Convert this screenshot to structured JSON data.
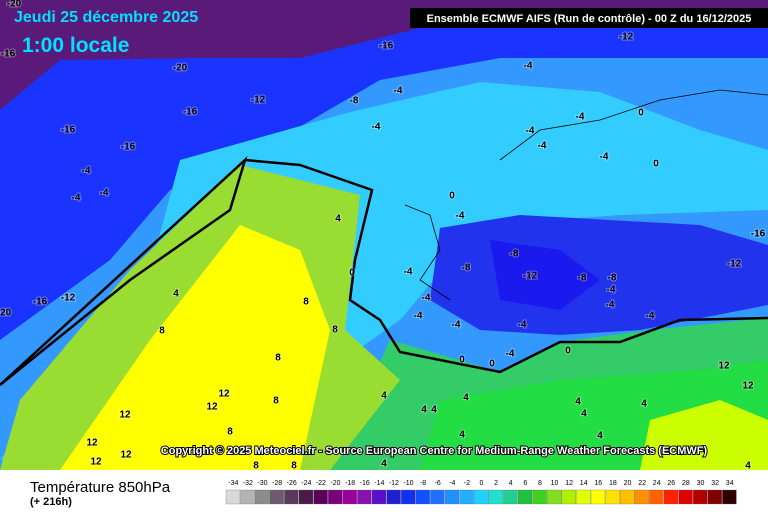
{
  "header": {
    "date": "Jeudi 25 décembre 2025",
    "time": "1:00 locale",
    "banner": "Ensemble ECMWF AIFS  (Run de contrôle)  - 00 Z du 16/12/2025"
  },
  "footer": {
    "copyright": "Copyright © 2025 Meteociel.fr - Source European Centre for Medium-Range Weather Forecasts (ECMWF)"
  },
  "legend": {
    "title": "Température 850hPa",
    "lead": "(+ 216h)",
    "ticks": [
      -34,
      -32,
      -30,
      -28,
      -26,
      -24,
      -22,
      -20,
      -18,
      -16,
      -14,
      -12,
      -10,
      -8,
      -6,
      -4,
      -2,
      0,
      2,
      4,
      6,
      8,
      10,
      12,
      14,
      16,
      18,
      20,
      22,
      24,
      26,
      28,
      30,
      32,
      34
    ],
    "colors": [
      "#d8d8d8",
      "#b4b4b4",
      "#8c8c8c",
      "#6e5a6e",
      "#5a3a5a",
      "#4a1a4a",
      "#5a005a",
      "#7a007a",
      "#9a009a",
      "#8a10b0",
      "#5a10c8",
      "#2020d0",
      "#1030f0",
      "#1050ff",
      "#2070ff",
      "#2090ff",
      "#20b0ff",
      "#20d0ff",
      "#20e0d0",
      "#20d090",
      "#20c040",
      "#40d020",
      "#80e020",
      "#b0f000",
      "#e0ff00",
      "#ffff00",
      "#ffe000",
      "#ffc000",
      "#ff9000",
      "#ff6000",
      "#ff2000",
      "#e00000",
      "#b00000",
      "#800000",
      "#300000"
    ]
  },
  "map": {
    "contour_labels": [
      -20,
      -16,
      -20,
      -16,
      -12,
      -16,
      -16,
      -4,
      -4,
      -4,
      -16,
      -12,
      -4,
      -4,
      -8,
      -4,
      -4,
      -4,
      -4,
      -4,
      0,
      0,
      0,
      -4,
      4,
      -8,
      -8,
      -12,
      -8,
      -8,
      -16,
      -12,
      -4,
      -4,
      -4,
      -4,
      -4,
      -4,
      -4,
      -4,
      0,
      4,
      -16,
      -12,
      -20,
      8,
      8,
      8,
      8,
      0,
      0,
      -4,
      0,
      4,
      4,
      4,
      4,
      12,
      12,
      8,
      12,
      8,
      12,
      12,
      12,
      8,
      8,
      4,
      4,
      4,
      4,
      4,
      12,
      12,
      4,
      4
    ]
  }
}
